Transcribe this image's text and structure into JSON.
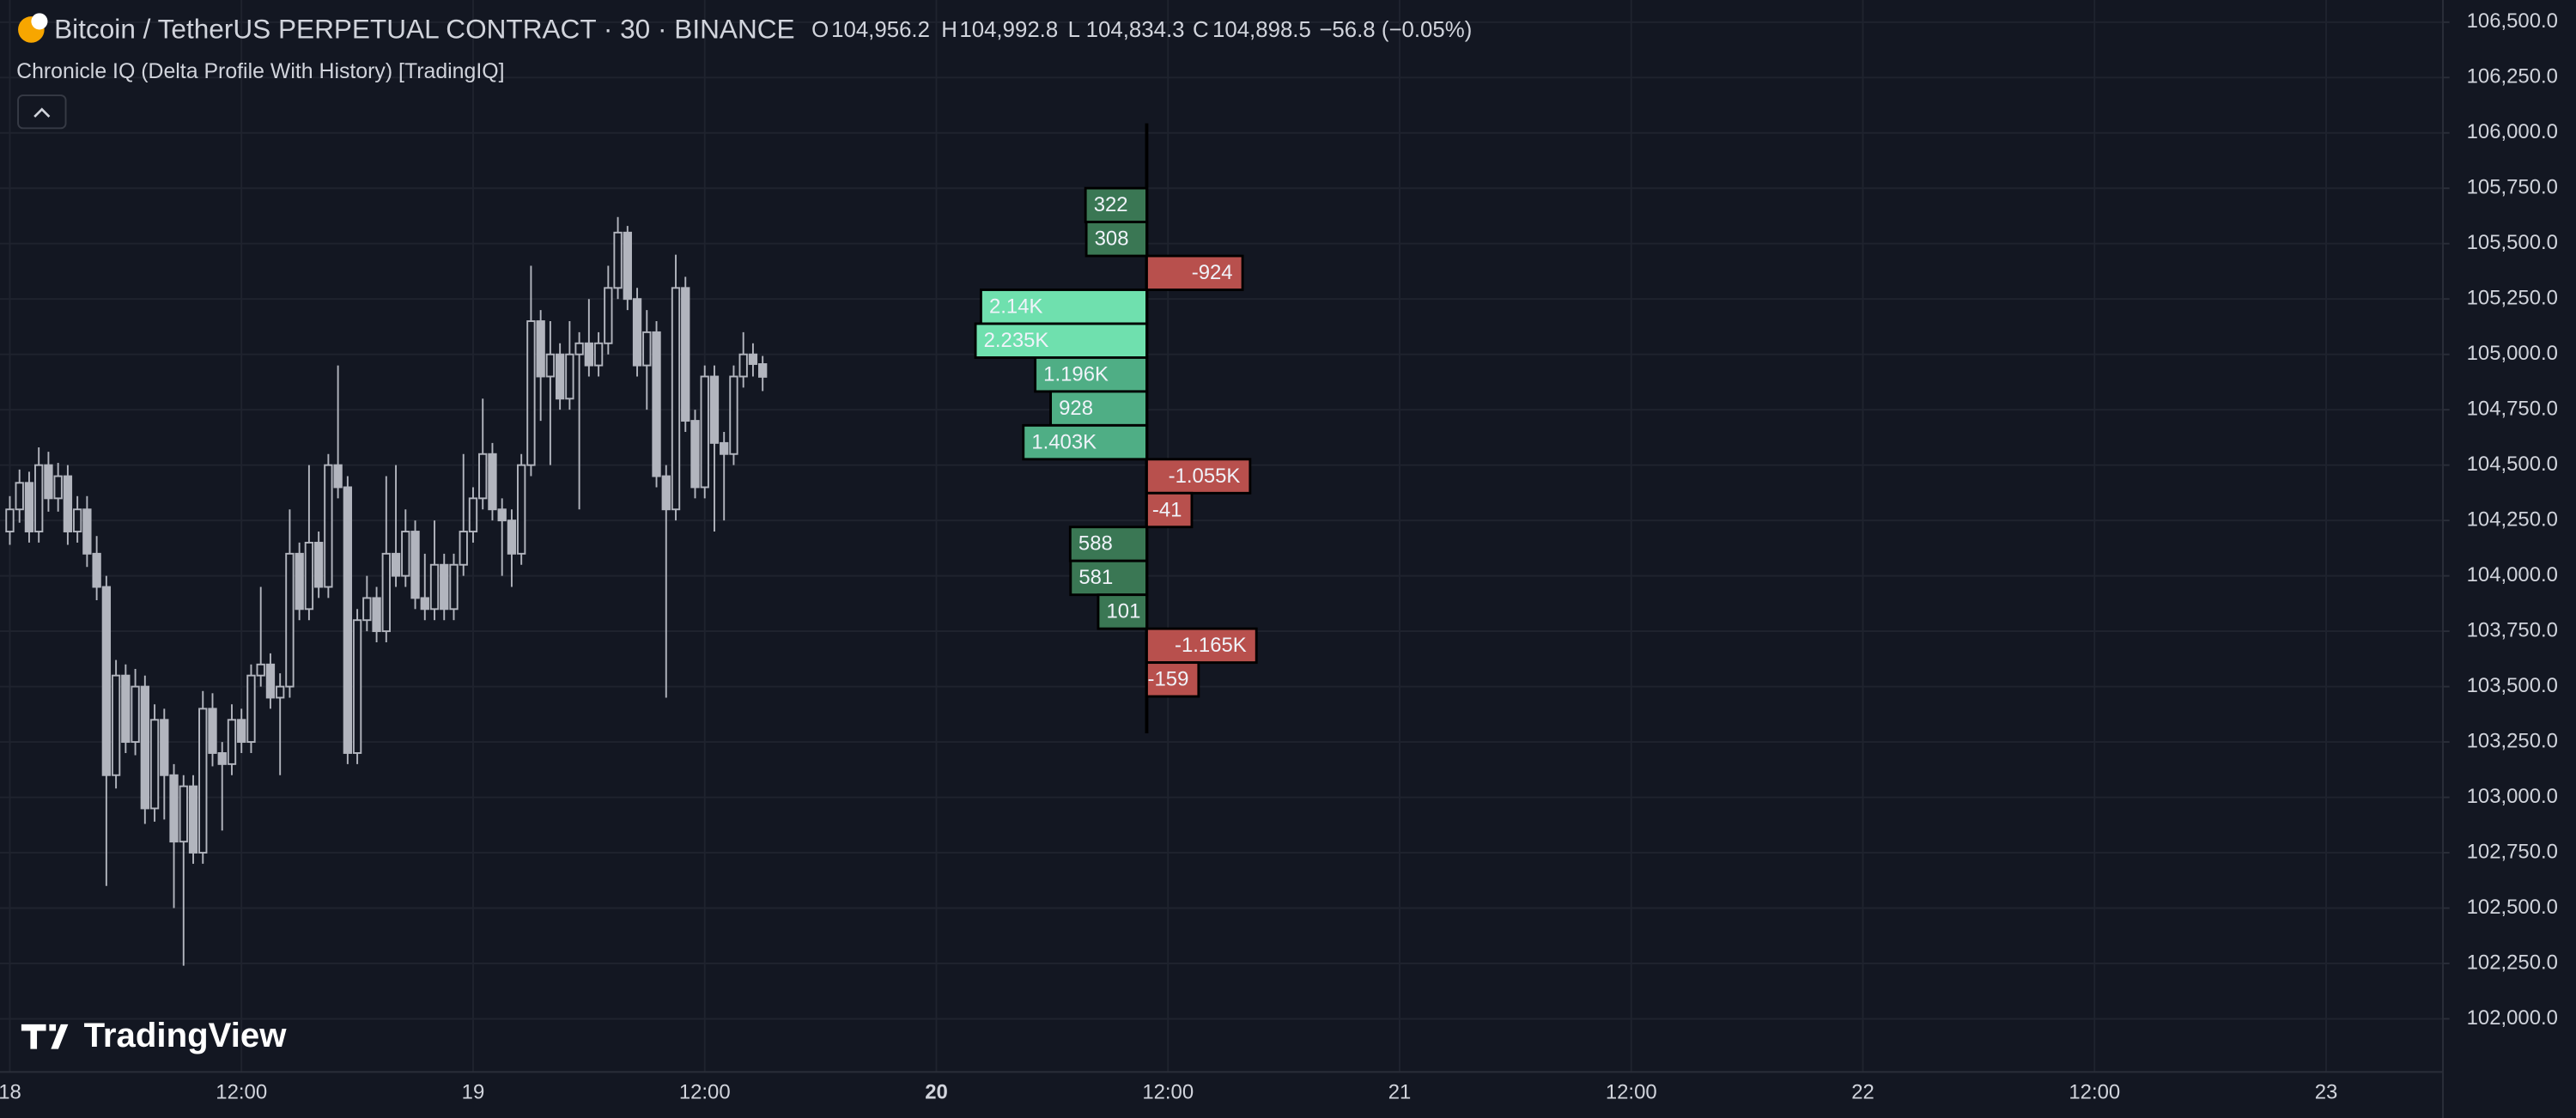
{
  "header": {
    "title": "Bitcoin / TetherUS PERPETUAL CONTRACT · 30 · BINANCE",
    "ohlc": [
      {
        "key": "O",
        "value": "104,956.2"
      },
      {
        "key": "H",
        "value": "104,992.8"
      },
      {
        "key": "L",
        "value": "104,834.3"
      },
      {
        "key": "C",
        "value": "104,898.5"
      }
    ],
    "change": "−56.8 (−0.05%)",
    "indicator": "Chronicle IQ (Delta Profile With History) [TradingIQ]",
    "watermark": "TradingView"
  },
  "chart_data": [
    {
      "type": "candlestick",
      "color": "#b2b5be",
      "ylim": [
        101760,
        106600
      ],
      "xlim": [
        -1.02,
        252.1
      ],
      "grid": true,
      "yticks": [
        {
          "value": 102000,
          "label": "102,000.0"
        },
        {
          "value": 102250,
          "label": "102,250.0"
        },
        {
          "value": 102500,
          "label": "102,500.0"
        },
        {
          "value": 102750,
          "label": "102,750.0"
        },
        {
          "value": 103000,
          "label": "103,000.0"
        },
        {
          "value": 103250,
          "label": "103,250.0"
        },
        {
          "value": 103500,
          "label": "103,500.0"
        },
        {
          "value": 103750,
          "label": "103,750.0"
        },
        {
          "value": 104000,
          "label": "104,000.0"
        },
        {
          "value": 104250,
          "label": "104,250.0"
        },
        {
          "value": 104500,
          "label": "104,500.0"
        },
        {
          "value": 104750,
          "label": "104,750.0"
        },
        {
          "value": 105000,
          "label": "105,000.0"
        },
        {
          "value": 105250,
          "label": "105,250.0"
        },
        {
          "value": 105500,
          "label": "105,500.0"
        },
        {
          "value": 105750,
          "label": "105,750.0"
        },
        {
          "value": 106000,
          "label": "106,000.0"
        },
        {
          "value": 106250,
          "label": "106,250.0"
        },
        {
          "value": 106500,
          "label": "106,500.0"
        }
      ],
      "xticks": [
        {
          "value": 0,
          "label": "18"
        },
        {
          "value": 24,
          "label": "12:00"
        },
        {
          "value": 48,
          "label": "19"
        },
        {
          "value": 72,
          "label": "12:00"
        },
        {
          "value": 96,
          "label": "20"
        },
        {
          "value": 120,
          "label": "12:00"
        },
        {
          "value": 144,
          "label": "21"
        },
        {
          "value": 168,
          "label": "12:00"
        },
        {
          "value": 192,
          "label": "22"
        },
        {
          "value": 216,
          "label": "12:00"
        },
        {
          "value": 240,
          "label": "23"
        }
      ],
      "open": [
        104200,
        104300,
        104420,
        104200,
        104500,
        104350,
        104450,
        104200,
        104300,
        104100,
        103950,
        103100,
        103550,
        103250,
        103500,
        102950,
        103350,
        103100,
        102800,
        103050,
        102750,
        103400,
        103200,
        103150,
        103350,
        103250,
        103550,
        103600,
        103450,
        103500,
        104100,
        103850,
        104150,
        103950,
        104500,
        104400,
        103200,
        103800,
        103900,
        103750,
        104100,
        104000,
        104200,
        103900,
        103850,
        104050,
        103850,
        104050,
        104200,
        104350,
        104550,
        104300,
        104250,
        104100,
        104500,
        105150,
        104900,
        105000,
        104800,
        105000,
        105050,
        104950,
        105050,
        105300,
        105550,
        105250,
        104950,
        105100,
        104450,
        104300,
        105300,
        104700,
        104400,
        104900,
        104600,
        104550,
        104900,
        105000,
        104956.2
      ],
      "high": [
        104360,
        104480,
        104470,
        104580,
        104560,
        104510,
        104500,
        104360,
        104360,
        104180,
        104000,
        103620,
        103600,
        103580,
        103550,
        103420,
        103400,
        103150,
        103100,
        103100,
        103480,
        103470,
        103250,
        103420,
        103400,
        103600,
        103950,
        103650,
        103560,
        104300,
        104150,
        104500,
        104200,
        104550,
        104950,
        104450,
        103850,
        104000,
        103950,
        104450,
        104500,
        104300,
        104250,
        104100,
        104250,
        104100,
        104100,
        104550,
        104400,
        104800,
        104600,
        104350,
        104300,
        104550,
        105400,
        105200,
        105150,
        105050,
        105150,
        105100,
        105250,
        105100,
        105400,
        105620,
        105580,
        105300,
        105200,
        105150,
        104500,
        105450,
        105350,
        104750,
        104950,
        104950,
        104650,
        104950,
        105100,
        105050,
        104992.8
      ],
      "low": [
        104140,
        104240,
        104150,
        104150,
        104290,
        104290,
        104140,
        104150,
        104040,
        103890,
        102600,
        103040,
        103200,
        103190,
        102880,
        102890,
        102900,
        102500,
        102240,
        102700,
        102700,
        103140,
        102850,
        103100,
        103200,
        103200,
        103500,
        103400,
        103100,
        103450,
        103800,
        103800,
        103900,
        103900,
        104350,
        103150,
        103150,
        103750,
        103700,
        103700,
        103950,
        103950,
        103850,
        103800,
        103800,
        103800,
        103800,
        104000,
        104150,
        104300,
        104250,
        104000,
        103950,
        104050,
        104450,
        104700,
        104500,
        104750,
        104750,
        104300,
        104900,
        104900,
        105000,
        105250,
        105200,
        104900,
        104750,
        104400,
        103450,
        104250,
        104650,
        104350,
        104350,
        104200,
        104250,
        104500,
        104850,
        104900,
        104834.3
      ],
      "close": [
        104300,
        104420,
        104200,
        104500,
        104350,
        104450,
        104200,
        104300,
        104100,
        103950,
        103100,
        103550,
        103250,
        103500,
        102950,
        103350,
        103100,
        102800,
        103050,
        102750,
        103400,
        103200,
        103150,
        103350,
        103250,
        103550,
        103600,
        103450,
        103500,
        104100,
        103850,
        104150,
        103950,
        104500,
        104400,
        103200,
        103800,
        103900,
        103750,
        104100,
        104000,
        104200,
        103900,
        103850,
        104050,
        103850,
        104050,
        104200,
        104350,
        104550,
        104300,
        104250,
        104100,
        104500,
        105150,
        104900,
        105000,
        104800,
        105000,
        105050,
        104950,
        105050,
        105300,
        105550,
        105250,
        104950,
        105100,
        104450,
        104300,
        105300,
        104700,
        104400,
        104900,
        104600,
        104550,
        104900,
        105000,
        104956.2,
        104898.5
      ]
    },
    {
      "type": "delta-profile",
      "levels": [
        105674,
        105521,
        105368,
        105215,
        105062,
        104909,
        104756,
        104603,
        104450,
        104297,
        104144,
        103991,
        103838,
        103685,
        103532
      ],
      "values": [
        322,
        308,
        -924,
        2140,
        2235,
        1196,
        928,
        1403,
        -1055,
        -41,
        588,
        581,
        101,
        -1165,
        -159
      ],
      "value_labels": [
        "322",
        "308",
        "-924",
        "2.14K",
        "2.235K",
        "1.196K",
        "928",
        "1.403K",
        "-1.055K",
        "-41",
        "588",
        "581",
        "101",
        "-1.165K",
        "-159"
      ],
      "colors": [
        "#3a7754",
        "#3a7754",
        "#b8504d",
        "#6fe0ae",
        "#6fe0ae",
        "#4fae85",
        "#4fae85",
        "#4fae85",
        "#b8504d",
        "#b8504d",
        "#3a7754",
        "#3a7754",
        "#3a7754",
        "#b8504d",
        "#b8504d"
      ]
    }
  ]
}
